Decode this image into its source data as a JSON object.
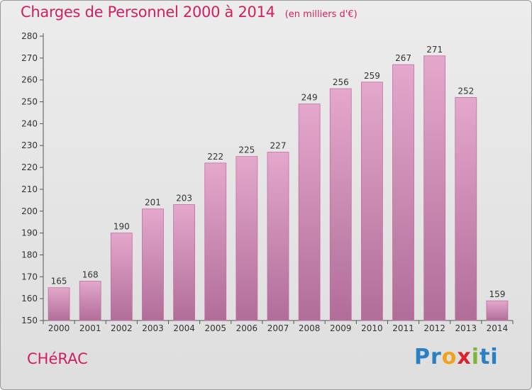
{
  "title": "Charges de Personnel 2000 à 2014",
  "subtitle": "(en milliers d'€)",
  "commune": "CHéRAC",
  "logo": {
    "text": "Proxiti",
    "letters": [
      "P",
      "r",
      "o",
      "x",
      "i",
      "t",
      "i"
    ],
    "colors": [
      "#2b7fc4",
      "#2b7fc4",
      "#f0a21a",
      "#d9232f",
      "#7bb63a",
      "#2b7fc4",
      "#2b7fc4"
    ]
  },
  "colors": {
    "accent": "#d21e63",
    "bar_top": "#e4a8cc",
    "bar_bottom": "#b06d98",
    "bar_stroke": "#c0709e"
  },
  "chart_data": {
    "type": "bar",
    "categories": [
      "2000",
      "2001",
      "2002",
      "2003",
      "2004",
      "2005",
      "2006",
      "2007",
      "2008",
      "2009",
      "2010",
      "2011",
      "2012",
      "2013",
      "2014"
    ],
    "values": [
      165,
      168,
      190,
      201,
      203,
      222,
      225,
      227,
      249,
      256,
      259,
      267,
      271,
      252,
      159
    ],
    "ylim": [
      150,
      280
    ],
    "yticks": [
      150,
      160,
      170,
      180,
      190,
      200,
      210,
      220,
      230,
      240,
      250,
      260,
      270,
      280
    ],
    "grid": false,
    "xlabel": "",
    "ylabel": ""
  }
}
